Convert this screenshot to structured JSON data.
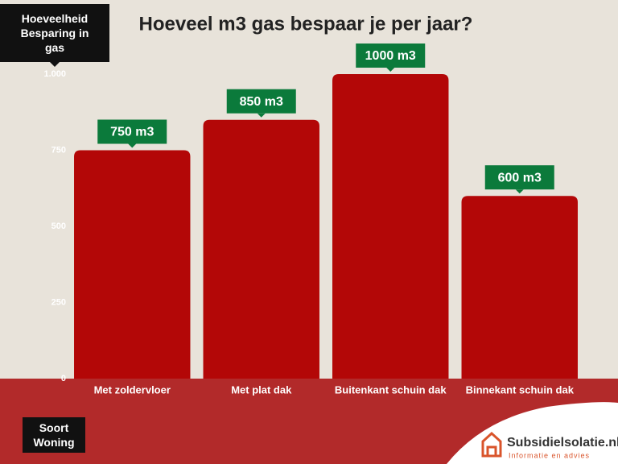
{
  "chart_data": {
    "type": "bar",
    "title": "Hoeveel m3 gas bespaar je per jaar?",
    "y_label": "Hoeveelheid Besparing in gas",
    "x_label": "Soort Woning",
    "categories": [
      "Met zoldervloer",
      "Met plat dak",
      "Buitenkant schuin dak",
      "Binnekant schuin dak"
    ],
    "values": [
      750,
      850,
      1000,
      600
    ],
    "value_labels": [
      "750 m3",
      "850 m3",
      "1000 m3",
      "600 m3"
    ],
    "color": "#b30707",
    "label_color": "#0b7a3b",
    "ylim": [
      0,
      1000
    ],
    "yticks": [
      0,
      250,
      500,
      750,
      {
        "value": 1000,
        "label": "1.000"
      }
    ],
    "grid": false
  },
  "logo": {
    "name": "Subsidielsolatie.nl",
    "tagline": "Informatie en advies"
  }
}
